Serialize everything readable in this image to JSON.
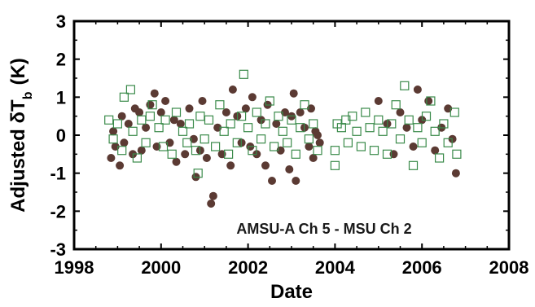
{
  "chart_data": {
    "type": "scatter",
    "title": "",
    "xlabel": "Date",
    "ylabel": {
      "main": "Adjusted δT",
      "subscript": "b",
      "unit": "(K)"
    },
    "xlim": [
      1998,
      2008
    ],
    "ylim": [
      -3,
      3
    ],
    "xticks": [
      1998,
      2000,
      2002,
      2004,
      2006,
      2008
    ],
    "yticks": [
      -3,
      -2,
      -1,
      0,
      1,
      2,
      3
    ],
    "xtick_labels": [
      "1998",
      "2000",
      "2002",
      "2004",
      "2006",
      "2008"
    ],
    "ytick_labels": [
      "-3",
      "-2",
      "-1",
      "0",
      "1",
      "2",
      "3"
    ],
    "grid": false,
    "legend": null,
    "annotation": "AMSU-A Ch 5 - MSU Ch 2",
    "series": [
      {
        "marker": "filled-circle",
        "color": "#5b3a33",
        "points": [
          [
            1998.85,
            -0.6
          ],
          [
            1998.9,
            0.1
          ],
          [
            1998.95,
            -0.3
          ],
          [
            1999.05,
            -0.8
          ],
          [
            1999.1,
            0.5
          ],
          [
            1999.15,
            -0.2
          ],
          [
            1999.25,
            0.3
          ],
          [
            1999.35,
            -0.5
          ],
          [
            1999.4,
            0.7
          ],
          [
            1999.5,
            0.6
          ],
          [
            1999.55,
            -0.4
          ],
          [
            1999.65,
            0.2
          ],
          [
            1999.75,
            0.8
          ],
          [
            1999.85,
            1.1
          ],
          [
            1999.9,
            -0.3
          ],
          [
            2000.0,
            0.6
          ],
          [
            2000.1,
            0.9
          ],
          [
            2000.2,
            -0.2
          ],
          [
            2000.3,
            0.4
          ],
          [
            2000.35,
            -0.7
          ],
          [
            2000.45,
            0.3
          ],
          [
            2000.55,
            -0.5
          ],
          [
            2000.65,
            0.7
          ],
          [
            2000.75,
            -0.1
          ],
          [
            2000.8,
            -1.1
          ],
          [
            2000.9,
            -0.4
          ],
          [
            2000.95,
            0.9
          ],
          [
            2001.05,
            -0.6
          ],
          [
            2001.15,
            -1.8
          ],
          [
            2001.2,
            -1.6
          ],
          [
            2001.3,
            0.2
          ],
          [
            2001.4,
            -0.5
          ],
          [
            2001.5,
            0.6
          ],
          [
            2001.6,
            -0.8
          ],
          [
            2001.65,
            1.2
          ],
          [
            2001.75,
            0.5
          ],
          [
            2001.85,
            -0.2
          ],
          [
            2001.95,
            0.7
          ],
          [
            2002.05,
            -0.3
          ],
          [
            2002.1,
            1.0
          ],
          [
            2002.2,
            -0.5
          ],
          [
            2002.3,
            0.4
          ],
          [
            2002.4,
            -0.8
          ],
          [
            2002.45,
            0.8
          ],
          [
            2002.55,
            -1.2
          ],
          [
            2002.65,
            0.3
          ],
          [
            2002.75,
            -0.4
          ],
          [
            2002.85,
            0.6
          ],
          [
            2002.95,
            -0.9
          ],
          [
            2003.0,
            0.5
          ],
          [
            2003.05,
            1.1
          ],
          [
            2003.1,
            -1.2
          ],
          [
            2003.2,
            0.6
          ],
          [
            2003.3,
            0.2
          ],
          [
            2003.4,
            -0.3
          ],
          [
            2003.45,
            0.7
          ],
          [
            2003.5,
            -0.6
          ],
          [
            2003.55,
            0.1
          ],
          [
            2003.6,
            0.0
          ],
          [
            2003.65,
            -0.2
          ],
          [
            2005.0,
            0.9
          ],
          [
            2005.2,
            0.3
          ],
          [
            2005.35,
            -0.5
          ],
          [
            2005.5,
            0.6
          ],
          [
            2005.65,
            0.2
          ],
          [
            2005.8,
            -0.3
          ],
          [
            2005.9,
            1.2
          ],
          [
            2006.0,
            0.4
          ],
          [
            2006.15,
            0.9
          ],
          [
            2006.3,
            -0.4
          ],
          [
            2006.45,
            0.2
          ],
          [
            2006.6,
            0.7
          ],
          [
            2006.7,
            -0.1
          ],
          [
            2006.78,
            -1.0
          ]
        ]
      },
      {
        "marker": "open-square",
        "color": "#3a8a4a",
        "points": [
          [
            1998.8,
            0.4
          ],
          [
            1998.9,
            -0.1
          ],
          [
            1999.0,
            0.3
          ],
          [
            1999.1,
            -0.4
          ],
          [
            1999.15,
            1.0
          ],
          [
            1999.3,
            1.2
          ],
          [
            1999.35,
            0.1
          ],
          [
            1999.45,
            -0.6
          ],
          [
            1999.55,
            0.4
          ],
          [
            1999.65,
            -0.2
          ],
          [
            1999.75,
            0.5
          ],
          [
            1999.8,
            0.8
          ],
          [
            1999.95,
            0.2
          ],
          [
            2000.05,
            -0.3
          ],
          [
            2000.1,
            0.4
          ],
          [
            2000.25,
            -0.5
          ],
          [
            2000.35,
            0.6
          ],
          [
            2000.5,
            0.1
          ],
          [
            2000.6,
            -0.2
          ],
          [
            2000.65,
            0.3
          ],
          [
            2000.8,
            -0.4
          ],
          [
            2000.85,
            -1.0
          ],
          [
            2000.9,
            0.5
          ],
          [
            2001.0,
            -0.1
          ],
          [
            2001.1,
            0.4
          ],
          [
            2001.25,
            -0.3
          ],
          [
            2001.35,
            0.8
          ],
          [
            2001.45,
            0.1
          ],
          [
            2001.55,
            -0.5
          ],
          [
            2001.6,
            0.3
          ],
          [
            2001.75,
            -0.2
          ],
          [
            2001.85,
            0.5
          ],
          [
            2001.9,
            1.6
          ],
          [
            2002.0,
            0.2
          ],
          [
            2002.1,
            -0.4
          ],
          [
            2002.2,
            0.6
          ],
          [
            2002.3,
            -0.1
          ],
          [
            2002.4,
            0.3
          ],
          [
            2002.5,
            0.9
          ],
          [
            2002.6,
            -0.3
          ],
          [
            2002.7,
            0.5
          ],
          [
            2002.8,
            0.1
          ],
          [
            2002.9,
            -0.2
          ],
          [
            2003.0,
            0.4
          ],
          [
            2003.1,
            -0.5
          ],
          [
            2003.2,
            0.2
          ],
          [
            2003.3,
            0.8
          ],
          [
            2003.4,
            -0.1
          ],
          [
            2003.5,
            0.3
          ],
          [
            2003.6,
            -0.4
          ],
          [
            2004.0,
            -0.4
          ],
          [
            2004.0,
            -0.8
          ],
          [
            2004.05,
            0.3
          ],
          [
            2004.15,
            0.2
          ],
          [
            2004.25,
            0.4
          ],
          [
            2004.3,
            -0.2
          ],
          [
            2004.4,
            0.5
          ],
          [
            2004.5,
            0.1
          ],
          [
            2004.6,
            -0.3
          ],
          [
            2004.7,
            0.6
          ],
          [
            2004.8,
            0.2
          ],
          [
            2004.9,
            -0.4
          ],
          [
            2005.0,
            0.4
          ],
          [
            2005.1,
            0.1
          ],
          [
            2005.2,
            -0.5
          ],
          [
            2005.3,
            0.3
          ],
          [
            2005.4,
            0.8
          ],
          [
            2005.5,
            -0.1
          ],
          [
            2005.6,
            1.3
          ],
          [
            2005.7,
            0.4
          ],
          [
            2005.8,
            -0.8
          ],
          [
            2005.9,
            0.2
          ],
          [
            2006.0,
            -0.2
          ],
          [
            2006.1,
            0.5
          ],
          [
            2006.2,
            0.9
          ],
          [
            2006.3,
            0.1
          ],
          [
            2006.4,
            -0.6
          ],
          [
            2006.5,
            0.3
          ],
          [
            2006.6,
            -0.2
          ],
          [
            2006.75,
            0.6
          ],
          [
            2006.8,
            -0.5
          ]
        ]
      }
    ]
  }
}
